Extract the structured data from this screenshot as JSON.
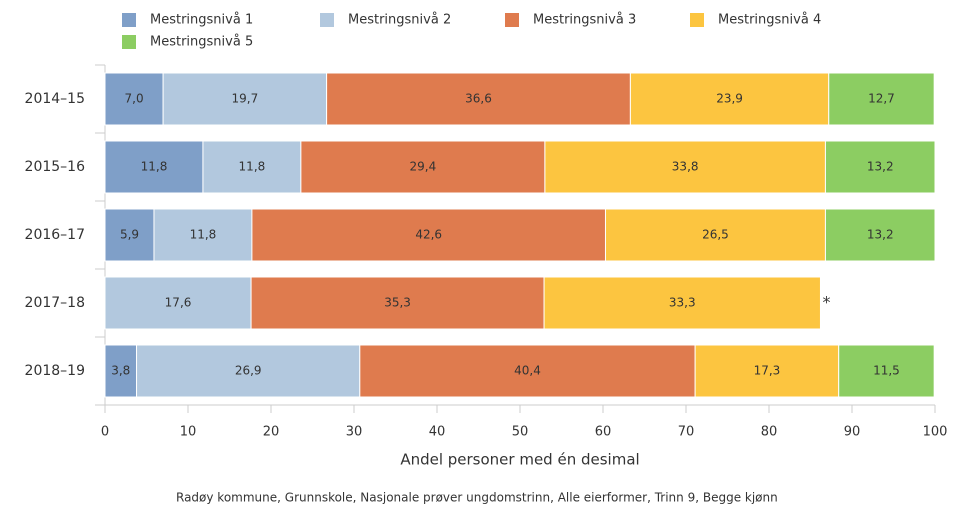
{
  "chart_data": {
    "type": "bar",
    "orientation": "horizontal",
    "stacked": true,
    "xlabel": "Andel personer med én desimal",
    "source": "Radøy kommune, Grunnskole, Nasjonale prøver ungdomstrinn, Alle eierformer, Trinn 9, Begge kjønn",
    "categories": [
      "2014–15",
      "2015–16",
      "2016–17",
      "2017–18",
      "2018–19"
    ],
    "series": [
      {
        "name": "Mestringsnivå 1",
        "color": "#7f9fc8",
        "values": [
          7.0,
          11.8,
          5.9,
          null,
          3.8
        ],
        "value_labels": [
          "7,0",
          "11,8",
          "5,9",
          "*",
          "3,8"
        ]
      },
      {
        "name": "Mestringsnivå 2",
        "color": "#b2c8de",
        "values": [
          19.7,
          11.8,
          11.8,
          17.6,
          26.9
        ],
        "value_labels": [
          "19,7",
          "11,8",
          "11,8",
          "17,6",
          "26,9"
        ]
      },
      {
        "name": "Mestringsnivå 3",
        "color": "#df7b4e",
        "values": [
          36.6,
          29.4,
          42.6,
          35.3,
          40.4
        ],
        "value_labels": [
          "36,6",
          "29,4",
          "42,6",
          "35,3",
          "40,4"
        ]
      },
      {
        "name": "Mestringsnivå 4",
        "color": "#fcc540",
        "values": [
          23.9,
          33.8,
          26.5,
          33.3,
          17.3
        ],
        "value_labels": [
          "23,9",
          "33,8",
          "26,5",
          "33,3",
          "17,3"
        ]
      },
      {
        "name": "Mestringsnivå 5",
        "color": "#8ccd62",
        "values": [
          12.7,
          13.2,
          13.2,
          null,
          11.5
        ],
        "value_labels": [
          "12,7",
          "13,2",
          "13,2",
          "*",
          "11,5"
        ]
      }
    ],
    "xlim": [
      0,
      100
    ],
    "xticks": [
      0,
      10,
      20,
      30,
      40,
      50,
      60,
      70,
      80,
      90,
      100
    ]
  }
}
